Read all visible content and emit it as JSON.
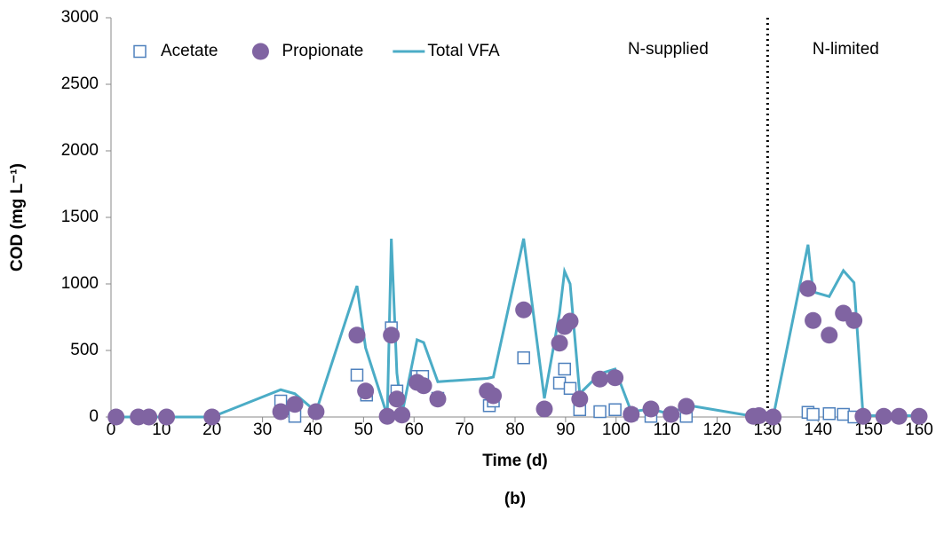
{
  "chart_data": {
    "type": "scatter-line",
    "x_label": "Time (d)",
    "y_label": "COD (mg L⁻¹)",
    "caption": "(b)",
    "xlim": [
      0,
      160
    ],
    "xticks": [
      0,
      10,
      20,
      30,
      40,
      50,
      60,
      70,
      80,
      90,
      100,
      110,
      120,
      130,
      140,
      150,
      160
    ],
    "ylim": [
      0,
      3000
    ],
    "yticks": [
      0,
      500,
      1000,
      1500,
      2000,
      2500,
      3000
    ],
    "grid": false,
    "legend": "top-left",
    "vline": 130,
    "regions": [
      "N-supplied",
      "N-limited"
    ],
    "series": [
      {
        "name": "Acetate",
        "marker": "square",
        "color": "#4f81bd",
        "x": [
          33.6,
          36.4,
          48.7,
          50.6,
          55.5,
          56.6,
          60.6,
          61.7,
          64.7,
          74.9,
          75.7,
          81.7,
          88.8,
          89.8,
          90.9,
          92.8,
          96.8,
          99.8,
          103,
          106.9,
          113.9,
          138,
          139,
          142.2,
          145,
          147.1
        ],
        "values": [
          120,
          5,
          315,
          165,
          670,
          195,
          305,
          305,
          140,
          85,
          120,
          445,
          255,
          360,
          215,
          55,
          40,
          55,
          20,
          5,
          5,
          35,
          20,
          25,
          20,
          0
        ]
      },
      {
        "name": "Propionate",
        "marker": "circle",
        "color": "#8064a2",
        "x": [
          1,
          5.4,
          7.5,
          11,
          20,
          33.6,
          36.4,
          40.6,
          48.7,
          50.4,
          54.7,
          55.5,
          56.6,
          57.6,
          60.6,
          61.9,
          64.7,
          74.5,
          75.7,
          81.7,
          85.8,
          88.8,
          89.8,
          90.9,
          92.8,
          96.8,
          99.8,
          103,
          106.9,
          110.9,
          113.9,
          127.2,
          128.3,
          131.1,
          138,
          139,
          142.2,
          145,
          147.1,
          148.9,
          153,
          156,
          160
        ],
        "values": [
          0,
          0,
          0,
          0,
          0,
          40,
          95,
          40,
          615,
          195,
          5,
          615,
          135,
          15,
          260,
          235,
          135,
          195,
          160,
          805,
          60,
          555,
          680,
          720,
          135,
          285,
          295,
          20,
          60,
          20,
          80,
          5,
          10,
          0,
          965,
          725,
          615,
          780,
          725,
          5,
          5,
          5,
          5
        ]
      },
      {
        "name": "Total VFA",
        "marker": "line",
        "color": "#4bacc6",
        "x": [
          1,
          5.4,
          7.5,
          11,
          20,
          33.6,
          36.4,
          40.6,
          48.7,
          50.4,
          54.7,
          55.5,
          56.6,
          57.6,
          60.6,
          61.9,
          64.7,
          74.5,
          75.7,
          81.7,
          85.8,
          88.8,
          89.8,
          90.9,
          92.8,
          96.8,
          99.8,
          103,
          106.9,
          110.9,
          113.9,
          127.2,
          128.3,
          131.1,
          138,
          139,
          142.2,
          145,
          147.1,
          148.9,
          153,
          156,
          160
        ],
        "values": [
          0,
          0,
          0,
          0,
          0,
          205,
          175,
          40,
          985,
          520,
          10,
          1340,
          330,
          20,
          580,
          560,
          265,
          290,
          300,
          1340,
          140,
          780,
          1095,
          1000,
          175,
          325,
          360,
          40,
          60,
          20,
          90,
          5,
          15,
          0,
          1295,
          940,
          905,
          1100,
          1010,
          10,
          10,
          10,
          10
        ]
      }
    ]
  }
}
